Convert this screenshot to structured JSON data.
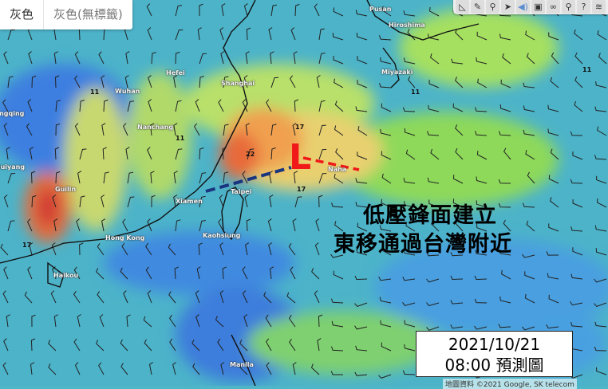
{
  "tabs": [
    {
      "label": "灰色",
      "active": true
    },
    {
      "label": "灰色(無標籤)",
      "active": false
    }
  ],
  "toolbar": {
    "icons": [
      "ruler-icon",
      "pencil-icon",
      "pin-icon",
      "arrow-icon",
      "sound-icon",
      "lock-icon",
      "link-icon",
      "search-icon",
      "help-icon",
      "layers-icon"
    ]
  },
  "cities": {
    "pusan": "Pusan",
    "hiroshima": "Hiroshima",
    "miyazaki": "Miyazaki",
    "shanghai": "Shanghai",
    "hefei": "Hefei",
    "wuhan": "Wuhan",
    "nanchang": "Nanchang",
    "chongqing": "Chongqing",
    "guiyang": "Guiyang",
    "guilin": "Guilin",
    "hongkong": "Hong Kong",
    "haikou": "Haikou",
    "xiamen": "Xiamen",
    "taipei": "Taipei",
    "kaohsiung": "Kaohsiung",
    "naha": "Naha",
    "manila": "Manila"
  },
  "contour_labels": [
    "11",
    "17",
    "22"
  ],
  "annotation": {
    "line1": "低壓鋒面建立",
    "line2": "東移通過台灣附近",
    "low_symbol": "L"
  },
  "datebox": {
    "date": "2021/10/21",
    "time_label": "08:00 預測圖"
  },
  "attribution": "地圖資料 ©2021 Google, SK telecom",
  "colors": {
    "front_warm": "#f01818",
    "front_cold": "#1a3580",
    "low": "#f01818"
  }
}
